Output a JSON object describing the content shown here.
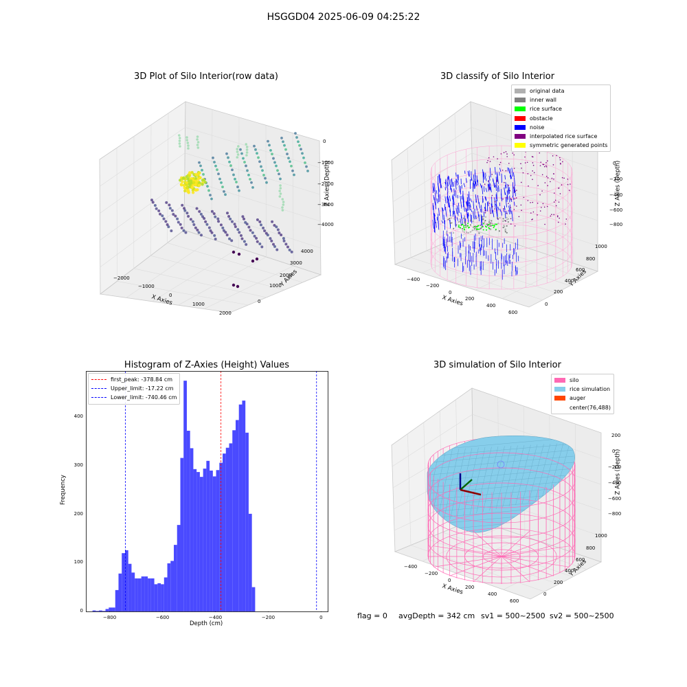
{
  "figure": {
    "suptitle": "HSGGD04 2025-06-09 04:25:22",
    "footer": {
      "flag": "flag = 0",
      "avg": "avgDepth = 342 cm",
      "sv1": "sv1 = 500~2500",
      "sv2": "sv2 = 500~2500"
    }
  },
  "colors": {
    "hist_bar": "#4a4aff",
    "first_peak_line": "#ff0000",
    "limit_lines": "#0000ff",
    "silo_mesh": "#ff69b4",
    "rice_simulation": "#87ceeb",
    "auger": "#ff4500"
  },
  "chart_data": [
    {
      "type": "scatter",
      "title": "3D Plot of Silo Interior(row data)",
      "xlabel": "X Axies",
      "ylabel": "Y Axies",
      "zlabel": "Z Axies (Depth)",
      "x_ticks": [
        "−2000",
        "−1000",
        "0",
        "1000",
        "2000"
      ],
      "y_ticks": [
        "0",
        "1000",
        "2000",
        "3000",
        "4000"
      ],
      "z_ticks": [
        "0",
        "−1000",
        "−2000",
        "−3000",
        "−4000"
      ],
      "colormap": "viridis"
    },
    {
      "type": "scatter",
      "title": "3D classify of Silo Interior",
      "xlabel": "X Axies",
      "ylabel": "Y Axies",
      "zlabel": "Z Axies (Depth)",
      "x_ticks": [
        "−400",
        "−200",
        "0",
        "200",
        "400",
        "600"
      ],
      "y_ticks": [
        "0",
        "200",
        "400",
        "600",
        "800",
        "1000"
      ],
      "z_ticks": [
        "0",
        "−200",
        "−400",
        "−600",
        "−800"
      ],
      "legend": [
        {
          "name": "original data",
          "color": "#b0b0b0"
        },
        {
          "name": "inner wall",
          "color": "#808080"
        },
        {
          "name": "rice surface",
          "color": "#00ff00"
        },
        {
          "name": "obstacle",
          "color": "#ff0000"
        },
        {
          "name": "noise",
          "color": "#0000ff"
        },
        {
          "name": "interpolated rice surface",
          "color": "#800080"
        },
        {
          "name": "symmetric generated points",
          "color": "#ffff00"
        }
      ]
    },
    {
      "type": "bar",
      "title": "Histogram of Z-Axies (Height) Values",
      "xlabel": "Depth (cm)",
      "ylabel": "Frequency",
      "xlim": [
        -890,
        25
      ],
      "ylim": [
        0,
        495
      ],
      "x_ticks": [
        -800,
        -600,
        -400,
        -200,
        0
      ],
      "x_tick_labels": [
        "−800",
        "−600",
        "−400",
        "−200",
        "0"
      ],
      "y_ticks": [
        0,
        100,
        200,
        300,
        400
      ],
      "bin_start": -865,
      "bin_width": 12.31,
      "values": [
        2,
        1,
        2,
        1,
        5,
        8,
        8,
        44,
        78,
        120,
        126,
        98,
        80,
        68,
        68,
        72,
        72,
        68,
        68,
        56,
        58,
        56,
        70,
        99,
        104,
        137,
        178,
        316,
        475,
        372,
        336,
        293,
        287,
        277,
        294,
        310,
        290,
        278,
        291,
        306,
        325,
        337,
        346,
        373,
        394,
        426,
        434,
        368,
        201,
        50
      ],
      "vlines": [
        {
          "label": "first_peak: -378.84 cm",
          "x": -378.84,
          "color": "#ff0000"
        },
        {
          "label": "Upper_limit: -17.22 cm",
          "x": -17.22,
          "color": "#0000ff"
        },
        {
          "label": "Lower_limit: -740.46 cm",
          "x": -740.46,
          "color": "#0000ff"
        }
      ],
      "legend_position": "upper left"
    },
    {
      "type": "surface",
      "title": "3D simulation of Silo Interior",
      "xlabel": "X Axies",
      "ylabel": "Y Axies",
      "zlabel": "Z Axies (Depth)",
      "x_ticks": [
        "−400",
        "−200",
        "0",
        "200",
        "400",
        "600"
      ],
      "y_ticks": [
        "0",
        "200",
        "400",
        "600",
        "800",
        "1000"
      ],
      "z_ticks": [
        "200",
        "0",
        "−200",
        "−400",
        "−600",
        "−800"
      ],
      "legend": [
        {
          "name": "silo",
          "color": "#ff69b4"
        },
        {
          "name": "rice simulation",
          "color": "#87ceeb"
        },
        {
          "name": "auger",
          "color": "#ff4500"
        },
        {
          "name": "center(76,488)",
          "color": ""
        }
      ]
    }
  ]
}
